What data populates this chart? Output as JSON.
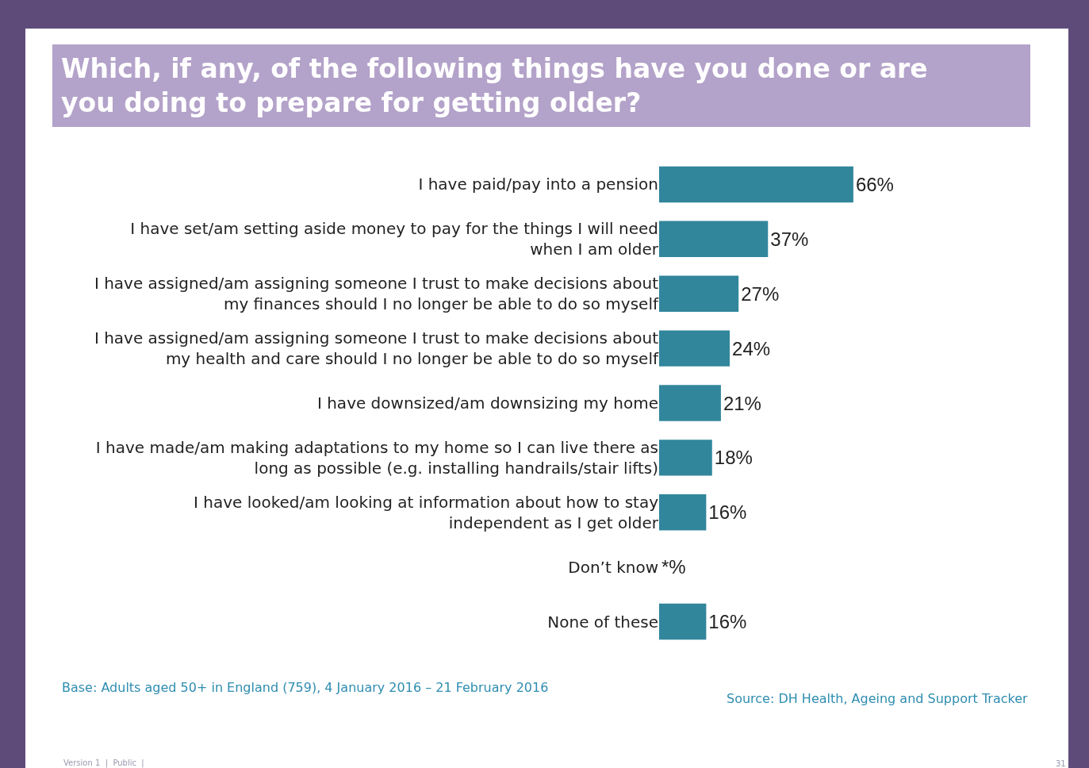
{
  "chart_data": {
    "type": "bar",
    "orientation": "horizontal",
    "title": "Which, if any, of the following things have you done or are you doing to prepare for getting older?",
    "categories": [
      "I have paid/pay into a pension",
      "I have set/am setting aside money to pay for the things I will need when I am older",
      "I have assigned/am assigning someone I trust to make decisions about my finances should I no longer be able to do so myself",
      "I have assigned/am assigning someone I trust to make decisions about my health and care should I no longer be able to do so myself",
      "I have downsized/am downsizing my home",
      "I have made/am making adaptations to my home so I can live there as long as possible (e.g. installing handrails/stair lifts)",
      "I have looked/am looking at information about how to stay independent as I get older",
      "Don’t know",
      "None of these"
    ],
    "values": [
      66,
      37,
      27,
      24,
      21,
      18,
      16,
      0,
      16
    ],
    "value_labels": [
      "66%",
      "37%",
      "27%",
      "24%",
      "21%",
      "18%",
      "16%",
      "*%",
      "16%"
    ],
    "color": "#31869c",
    "annotations": [
      "Base: Adults aged 50+ in England (759), 4 January 2016 – 21 February 2016",
      "Source: DH Health, Ageing and Support Tracker",
      "Version 1  |  Public  |",
      "31"
    ],
    "legend": false
  }
}
